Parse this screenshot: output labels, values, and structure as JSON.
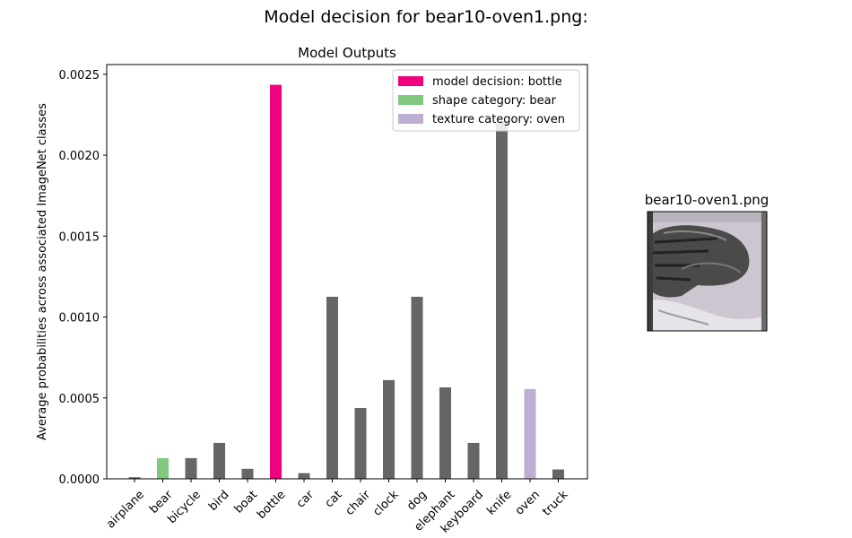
{
  "figure": {
    "suptitle": "Model decision for bear10-oven1.png:",
    "image_panel": {
      "title": "bear10-oven1.png",
      "image_description_icon": "stylized-bear-oven-thumbnail"
    }
  },
  "colors": {
    "default_bar": "#666666",
    "decision": "#f0027f",
    "shape": "#7fc97f",
    "texture": "#beaed4"
  },
  "chart_data": {
    "type": "bar",
    "title": "Model Outputs",
    "xlabel": "",
    "ylabel": "Average probabilities across associated ImageNet classes",
    "ylim": [
      0,
      0.00256
    ],
    "yticks": [
      0.0,
      0.0005,
      0.001,
      0.0015,
      0.002,
      0.0025
    ],
    "ytick_labels": [
      "0.0000",
      "0.0005",
      "0.0010",
      "0.0015",
      "0.0020",
      "0.0025"
    ],
    "categories": [
      "airplane",
      "bear",
      "bicycle",
      "bird",
      "boat",
      "bottle",
      "car",
      "cat",
      "chair",
      "clock",
      "dog",
      "elephant",
      "keyboard",
      "knife",
      "oven",
      "truck"
    ],
    "values": [
      1e-05,
      0.000128,
      0.000128,
      0.000222,
      6.2e-05,
      0.002435,
      3.5e-05,
      0.001125,
      0.000438,
      0.00061,
      0.001125,
      0.000565,
      0.000222,
      0.002205,
      0.000555,
      5.8e-05
    ],
    "highlight": {
      "bottle": "decision",
      "bear": "shape",
      "oven": "texture"
    },
    "legend": {
      "position": "top-right",
      "entries": [
        {
          "label": "model decision: bottle",
          "role": "decision"
        },
        {
          "label": "shape category: bear",
          "role": "shape"
        },
        {
          "label": "texture category: oven",
          "role": "texture"
        }
      ]
    },
    "grid": false
  }
}
